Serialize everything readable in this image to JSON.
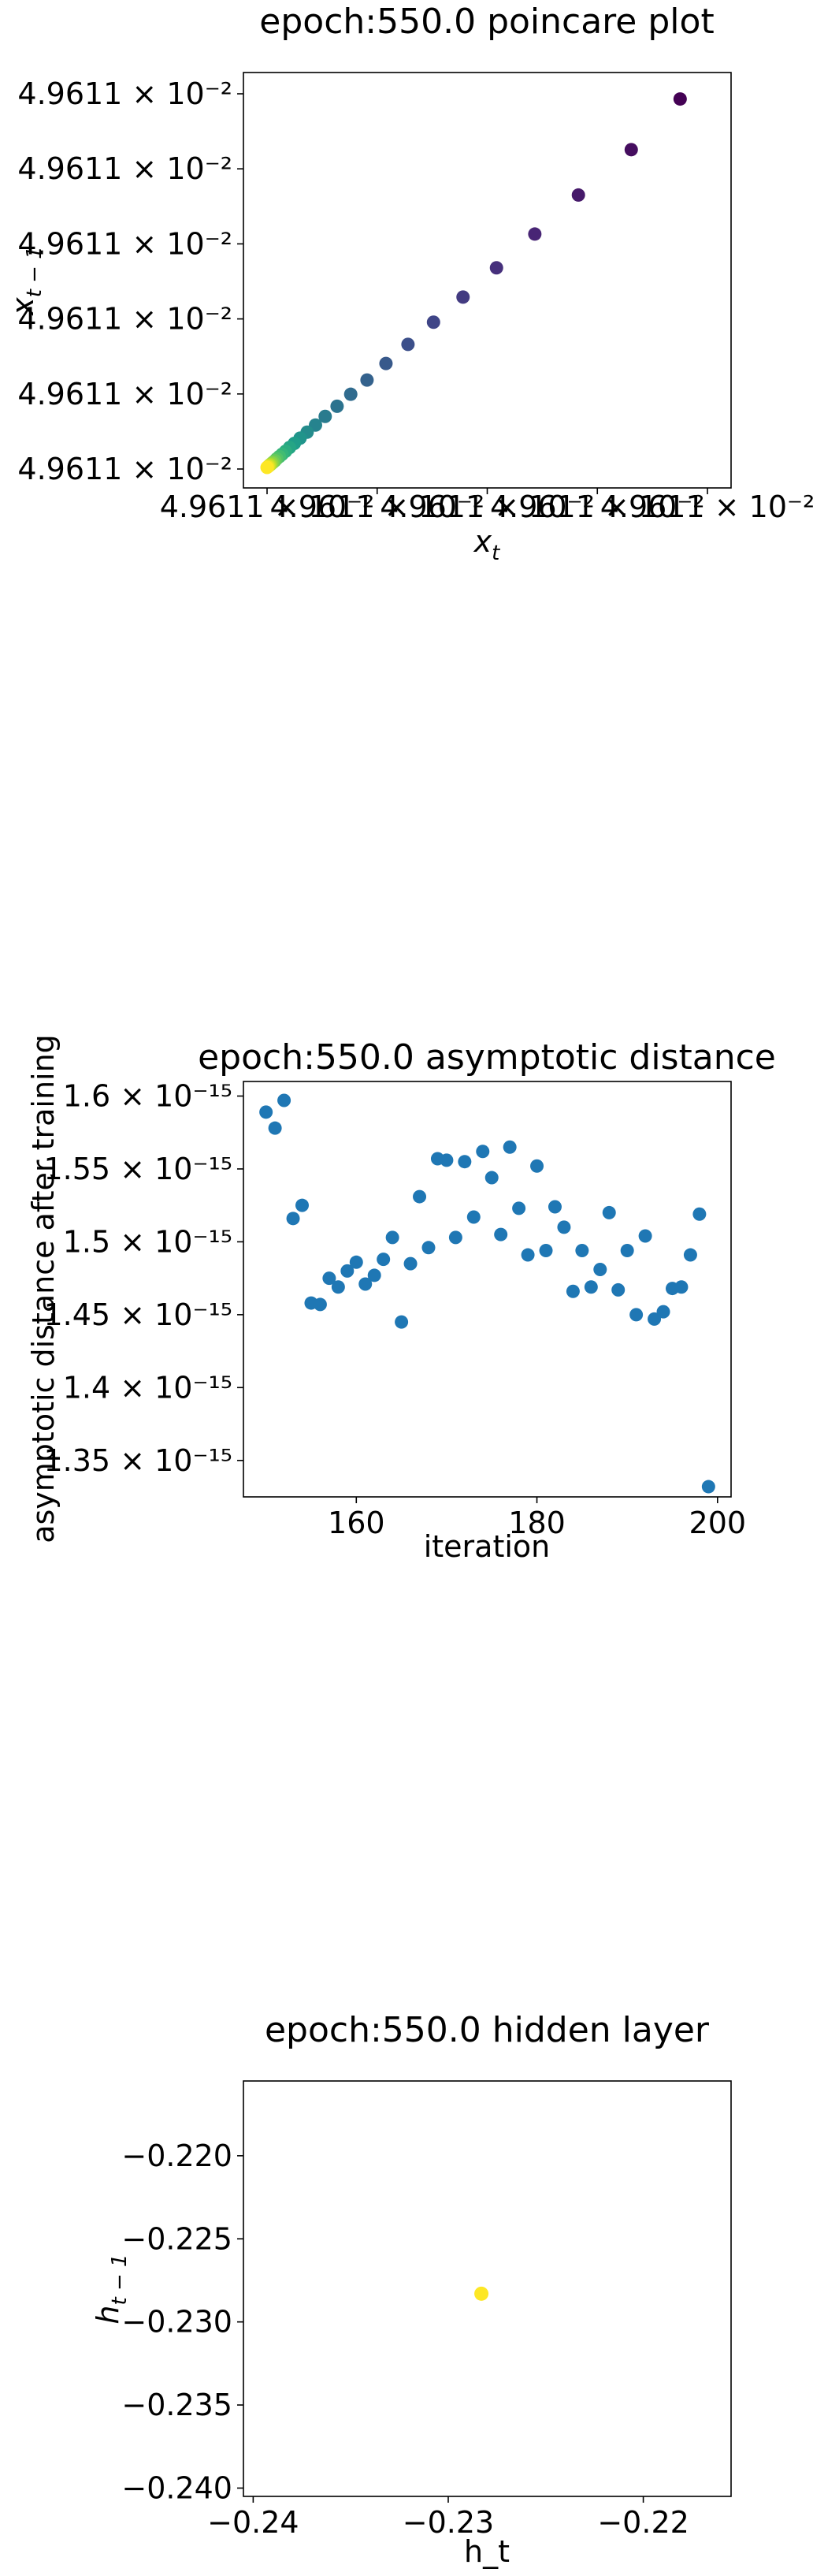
{
  "chart_data": [
    {
      "type": "scatter",
      "title": "epoch:550.0 poincare plot",
      "xlabel": "x_t",
      "ylabel": "x_{t-1}",
      "colormap": "viridis",
      "x_tick_labels": [
        "4.9611 × 10⁻²",
        "4.9611 × 10⁻²",
        "4.9611 × 10⁻²",
        "4.9611 × 10⁻²",
        "4.9611 × 10⁻²"
      ],
      "y_tick_labels": [
        "4.9611 × 10⁻²",
        "4.9611 × 10⁻²",
        "4.9611 × 10⁻²",
        "4.9611 × 10⁻²",
        "4.9611 × 10⁻²",
        "4.9611 × 10⁻²"
      ],
      "xlim": [
        0,
        1
      ],
      "ylim": [
        0,
        1
      ],
      "x": [
        0.938,
        0.827,
        0.707,
        0.608,
        0.521,
        0.445,
        0.378,
        0.32,
        0.27,
        0.227,
        0.19,
        0.159,
        0.132,
        0.11,
        0.091,
        0.075,
        0.062,
        0.051,
        0.042,
        0.034,
        0.028,
        0.022,
        0.018,
        0.014,
        0.011,
        0.008,
        0.006,
        0.004,
        0.002,
        0.0
      ],
      "y": [
        0.982,
        0.847,
        0.726,
        0.622,
        0.532,
        0.454,
        0.387,
        0.328,
        0.277,
        0.233,
        0.195,
        0.163,
        0.136,
        0.113,
        0.094,
        0.078,
        0.064,
        0.053,
        0.043,
        0.035,
        0.029,
        0.023,
        0.018,
        0.014,
        0.011,
        0.008,
        0.006,
        0.004,
        0.002,
        0.0
      ],
      "color_values": [
        0.0,
        0.034,
        0.069,
        0.103,
        0.138,
        0.172,
        0.207,
        0.241,
        0.276,
        0.31,
        0.345,
        0.379,
        0.414,
        0.448,
        0.483,
        0.517,
        0.552,
        0.586,
        0.621,
        0.655,
        0.69,
        0.724,
        0.759,
        0.793,
        0.828,
        0.862,
        0.897,
        0.931,
        0.966,
        1.0
      ]
    },
    {
      "type": "scatter",
      "title": "epoch:550.0 asymptotic distance",
      "xlabel": "iteration",
      "ylabel": "asymptotic distance after training",
      "color": "#1f77b4",
      "x_ticks": [
        160,
        180,
        200
      ],
      "y_ticks": [
        1.35,
        1.4,
        1.45,
        1.5,
        1.55,
        1.6
      ],
      "y_tick_labels": [
        "1.35 × 10⁻¹⁵",
        "1.4 × 10⁻¹⁵",
        "1.45 × 10⁻¹⁵",
        "1.5 × 10⁻¹⁵",
        "1.55 × 10⁻¹⁵",
        "1.6 × 10⁻¹⁵"
      ],
      "y_unit": "× 10⁻¹⁵",
      "xlim": [
        147.5,
        201.5
      ],
      "ylim": [
        1.325,
        1.61
      ],
      "x": [
        150,
        151,
        152,
        153,
        154,
        155,
        156,
        157,
        158,
        159,
        160,
        161,
        162,
        163,
        164,
        165,
        166,
        167,
        168,
        169,
        170,
        171,
        172,
        173,
        174,
        175,
        176,
        177,
        178,
        179,
        180,
        181,
        182,
        183,
        184,
        185,
        186,
        187,
        188,
        189,
        190,
        191,
        192,
        193,
        194,
        195,
        196,
        197,
        198,
        199
      ],
      "y": [
        1.589,
        1.578,
        1.597,
        1.516,
        1.525,
        1.458,
        1.457,
        1.475,
        1.469,
        1.48,
        1.486,
        1.471,
        1.477,
        1.488,
        1.503,
        1.445,
        1.485,
        1.531,
        1.496,
        1.557,
        1.556,
        1.503,
        1.555,
        1.517,
        1.562,
        1.544,
        1.505,
        1.565,
        1.523,
        1.491,
        1.552,
        1.494,
        1.524,
        1.51,
        1.466,
        1.494,
        1.469,
        1.481,
        1.52,
        1.467,
        1.494,
        1.45,
        1.504,
        1.447,
        1.452,
        1.468,
        1.469,
        1.491,
        1.519,
        1.332
      ]
    },
    {
      "type": "scatter",
      "title": "epoch:550.0 hidden layer",
      "xlabel": "h_t",
      "ylabel": "h_{t-1}",
      "color": "#fde725",
      "x_ticks": [
        -0.24,
        -0.23,
        -0.22
      ],
      "x_tick_labels": [
        "−0.24",
        "−0.23",
        "−0.22"
      ],
      "y_ticks": [
        -0.22,
        -0.225,
        -0.23,
        -0.235,
        -0.24
      ],
      "y_tick_labels": [
        "−0.220",
        "−0.225",
        "−0.230",
        "−0.235",
        "−0.240"
      ],
      "xlim": [
        -0.2405,
        -0.2155
      ],
      "ylim": [
        -0.2405,
        -0.2155
      ],
      "x": [
        -0.2283
      ],
      "y": [
        -0.2283
      ]
    }
  ]
}
